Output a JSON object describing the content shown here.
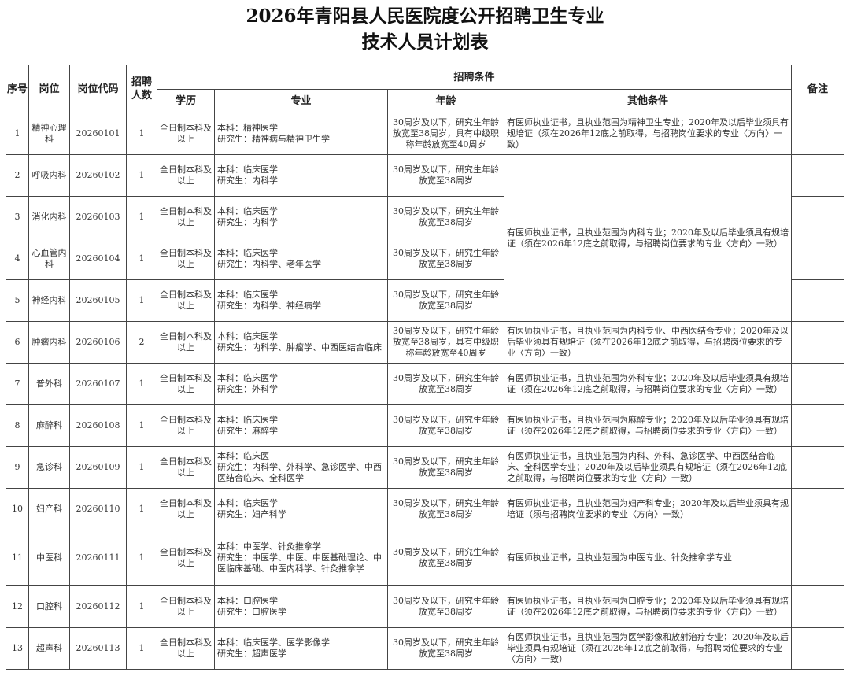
{
  "title_line1": "2026年青阳县人民医院度公开招聘卫生专业",
  "title_line2": "技术人员计划表",
  "headers": {
    "seq": "序号",
    "position": "岗位",
    "code": "岗位代码",
    "count": "招聘人数",
    "conditions": "招聘条件",
    "education": "学历",
    "major": "专业",
    "age": "年龄",
    "other": "其他条件",
    "remark": "备注"
  },
  "rows": [
    {
      "seq": "1",
      "position": "精神心理科",
      "code": "20260101",
      "count": "1",
      "education": "全日制本科及以上",
      "major": "本科：精神医学\n研究生：精神病与精神卫生学",
      "age": "30周岁及以下，研究生年龄放宽至38周岁，具有中级职称年龄放宽至40周岁",
      "other": "有医师执业证书，且执业范围为精神卫生专业；2020年及以后毕业须具有规培证（须在2026年12底之前取得，与招聘岗位要求的专业〈方向〉一致）",
      "remark": ""
    },
    {
      "seq": "2",
      "position": "呼吸内科",
      "code": "20260102",
      "count": "1",
      "education": "全日制本科及以上",
      "major": "本科：临床医学\n研究生：内科学",
      "age": "30周岁及以下，研究生年龄放宽至38周岁",
      "other": "有医师执业证书，且执业范围为内科专业；2020年及以后毕业须具有规培证（须在2026年12底之前取得，与招聘岗位要求的专业〈方向〉一致）",
      "remark": ""
    },
    {
      "seq": "3",
      "position": "消化内科",
      "code": "20260103",
      "count": "1",
      "education": "全日制本科及以上",
      "major": "本科：临床医学\n研究生：内科学",
      "age": "30周岁及以下，研究生年龄放宽至38周岁",
      "remark": ""
    },
    {
      "seq": "4",
      "position": "心血管内科",
      "code": "20260104",
      "count": "1",
      "education": "全日制本科及以上",
      "major": "本科：临床医学\n研究生：内科学、老年医学",
      "age": "30周岁及以下，研究生年龄放宽至38周岁",
      "remark": ""
    },
    {
      "seq": "5",
      "position": "神经内科",
      "code": "20260105",
      "count": "1",
      "education": "全日制本科及以上",
      "major": "本科：临床医学\n研究生：内科学、神经病学",
      "age": "30周岁及以下，研究生年龄放宽至38周岁",
      "remark": ""
    },
    {
      "seq": "6",
      "position": "肿瘤内科",
      "code": "20260106",
      "count": "2",
      "education": "全日制本科及以上",
      "major": "本科：临床医学\n研究生：内科学、肿瘤学、中西医结合临床",
      "age": "30周岁及以下，研究生年龄放宽至38周岁，具有中级职称年龄放宽至40周岁",
      "other": "有医师执业证书，且执业范围为内科专业、中西医结合专业；2020年及以后毕业须具有规培证（须在2026年12底之前取得，与招聘岗位要求的专业〈方向〉一致）",
      "remark": ""
    },
    {
      "seq": "7",
      "position": "普外科",
      "code": "20260107",
      "count": "1",
      "education": "全日制本科及以上",
      "major": "本科：临床医学\n研究生：外科学",
      "age": "30周岁及以下，研究生年龄放宽至38周岁",
      "other": "有医师执业证书，且执业范围为外科专业；2020年及以后毕业须具有规培证（须在2026年12底之前取得，与招聘岗位要求的专业〈方向〉一致）",
      "remark": ""
    },
    {
      "seq": "8",
      "position": "麻醉科",
      "code": "20260108",
      "count": "1",
      "education": "全日制本科及以上",
      "major": "本科：临床医学\n研究生：麻醉学",
      "age": "30周岁及以下，研究生年龄放宽至38周岁",
      "other": "有医师执业证书，且执业范围为麻醉专业；2020年及以后毕业须具有规培证（须在2026年12底之前取得，与招聘岗位要求的专业〈方向〉一致）",
      "remark": ""
    },
    {
      "seq": "9",
      "position": "急诊科",
      "code": "20260109",
      "count": "1",
      "education": "全日制本科及以上",
      "major": "本科：临床医\n研究生：内科学、外科学、急诊医学、中西医结合临床、全科医学",
      "age": "30周岁及以下，研究生年龄放宽至38周岁",
      "other": "有医师执业证书，且执业范围为内科、外科、急诊医学、中西医结合临床、全科医学专业；2020年及以后毕业须具有规培证（须在2026年12底之前取得，与招聘岗位要求的专业〈方向〉一致）",
      "remark": ""
    },
    {
      "seq": "10",
      "position": "妇产科",
      "code": "20260110",
      "count": "1",
      "education": "全日制本科及以上",
      "major": "本科：临床医学\n研究生：妇产科学",
      "age": "30周岁及以下，研究生年龄放宽至38周岁",
      "other": "有医师执业证书，且执业范围为妇产科专业；2020年及以后毕业须具有规培证（须与招聘岗位要求的专业〈方向〉一致）",
      "remark": ""
    },
    {
      "seq": "11",
      "position": "中医科",
      "code": "20260111",
      "count": "1",
      "education": "全日制本科及以上",
      "major": "本科：中医学、针灸推拿学\n研究生：中医学、中医、中医基础理论、中医临床基础、中医内科学、针灸推拿学",
      "age": "30周岁及以下，研究生年龄放宽至38周岁",
      "other": "有医师执业证书，且执业范围为中医专业、针灸推拿学专业",
      "remark": ""
    },
    {
      "seq": "12",
      "position": "口腔科",
      "code": "20260112",
      "count": "1",
      "education": "全日制本科及以上",
      "major": "本科：口腔医学\n研究生：口腔医学",
      "age": "30周岁及以下，研究生年龄放宽至38周岁",
      "other": "有医师执业证书，且执业范围为口腔专业；2020年及以后毕业须具有规培证（须在2026年12底之前取得，与招聘岗位要求的专业〈方向〉一致）",
      "remark": ""
    },
    {
      "seq": "13",
      "position": "超声科",
      "code": "20260113",
      "count": "1",
      "education": "全日制本科及以上",
      "major": "本科：临床医学、医学影像学\n研究生：超声医学",
      "age": "30周岁及以下，研究生年龄放宽至38周岁",
      "other": "有医师执业证书，且执业范围为医学影像和放射治疗专业；2020年及以后毕业须具有规培证（须在2026年12底之前取得，与招聘岗位要求的专业〈方向〉一致）",
      "remark": ""
    }
  ]
}
